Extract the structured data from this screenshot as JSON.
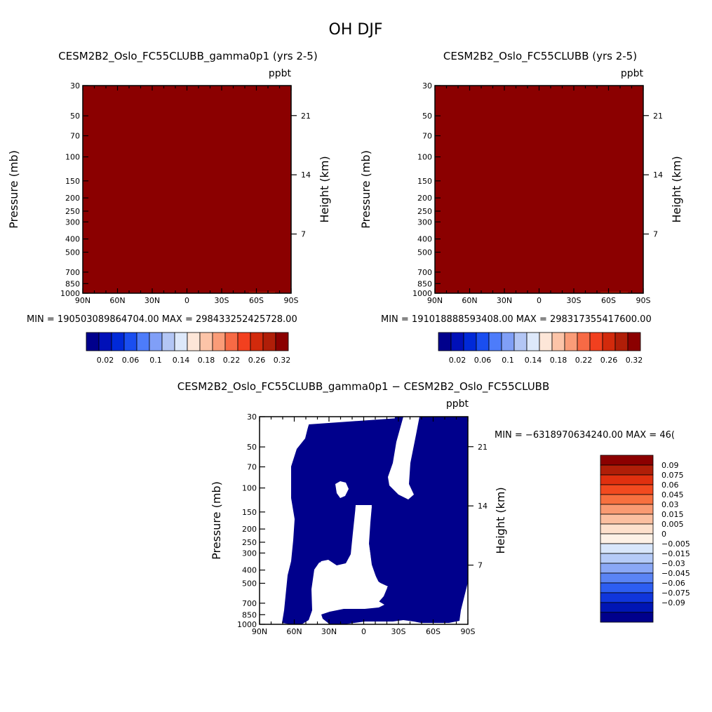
{
  "figure": {
    "title": "OH DJF",
    "colors": {
      "dark_red": "#8b0000",
      "dark_blue": "#00008c",
      "white": "#ffffff"
    }
  },
  "chart_data": [
    {
      "type": "heatmap",
      "id": "top_left",
      "title": "CESM2B2_Oslo_FC55CLUBB_gamma0p1 (yrs 2-5)",
      "units": "ppbt",
      "xlabel": "",
      "ylabel": "Pressure (mb)",
      "right_label": "Height (km)",
      "x_ticks": [
        "90N",
        "60N",
        "30N",
        "0",
        "30S",
        "60S",
        "90S"
      ],
      "y_ticks": [
        "30",
        "50",
        "70",
        "100",
        "150",
        "200",
        "250",
        "300",
        "400",
        "500",
        "700",
        "850",
        "1000"
      ],
      "right_ticks": [
        "21",
        "14",
        "7"
      ],
      "stats": "MIN = 190503089864704.00   MAX = 298433252425728.00",
      "colorbar": {
        "labels": [
          "0.02",
          "0.06",
          "0.1",
          "0.14",
          "0.18",
          "0.22",
          "0.26",
          "0.32"
        ],
        "colors": [
          "#00008c",
          "#0010b8",
          "#0029d8",
          "#1a4ef0",
          "#4d7cfa",
          "#809ff7",
          "#b3c6f5",
          "#dde8fa",
          "#fde6d8",
          "#fcc4a8",
          "#fa9c78",
          "#f76a45",
          "#f2401f",
          "#d22a0c",
          "#b01e08",
          "#8b0000"
        ]
      },
      "field": "uniform above max (dark red)"
    },
    {
      "type": "heatmap",
      "id": "top_right",
      "title": "CESM2B2_Oslo_FC55CLUBB (yrs 2-5)",
      "units": "ppbt",
      "xlabel": "",
      "ylabel": "Pressure (mb)",
      "right_label": "Height (km)",
      "x_ticks": [
        "90N",
        "60N",
        "30N",
        "0",
        "30S",
        "60S",
        "90S"
      ],
      "y_ticks": [
        "30",
        "50",
        "70",
        "100",
        "150",
        "200",
        "250",
        "300",
        "400",
        "500",
        "700",
        "850",
        "1000"
      ],
      "right_ticks": [
        "21",
        "14",
        "7"
      ],
      "stats": "MIN = 191018888593408.00   MAX = 298317355417600.00",
      "colorbar": {
        "labels": [
          "0.02",
          "0.06",
          "0.1",
          "0.14",
          "0.18",
          "0.22",
          "0.26",
          "0.32"
        ],
        "colors": [
          "#00008c",
          "#0010b8",
          "#0029d8",
          "#1a4ef0",
          "#4d7cfa",
          "#809ff7",
          "#b3c6f5",
          "#dde8fa",
          "#fde6d8",
          "#fcc4a8",
          "#fa9c78",
          "#f76a45",
          "#f2401f",
          "#d22a0c",
          "#b01e08",
          "#8b0000"
        ]
      },
      "field": "uniform above max (dark red)"
    },
    {
      "type": "heatmap",
      "id": "difference",
      "title": "CESM2B2_Oslo_FC55CLUBB_gamma0p1 − CESM2B2_Oslo_FC55CLUBB",
      "units": "ppbt",
      "xlabel": "",
      "ylabel": "Pressure (mb)",
      "right_label": "Height (km)",
      "x_ticks": [
        "90N",
        "60N",
        "30N",
        "0",
        "30S",
        "60S",
        "90S"
      ],
      "y_ticks": [
        "30",
        "50",
        "70",
        "100",
        "150",
        "200",
        "250",
        "300",
        "400",
        "500",
        "700",
        "850",
        "1000"
      ],
      "right_ticks": [
        "21",
        "14",
        "7"
      ],
      "stats": "MIN = −6318970634240.00   MAX = 46(",
      "colorbar": {
        "labels": [
          "0.09",
          "0.075",
          "0.06",
          "0.045",
          "0.03",
          "0.015",
          "0.005",
          "0",
          "−0.005",
          "−0.015",
          "−0.03",
          "−0.045",
          "−0.06",
          "−0.075",
          "−0.09"
        ],
        "colors": [
          "#8b0000",
          "#b01e08",
          "#e0300f",
          "#f24a1f",
          "#f7703f",
          "#f99a72",
          "#fbbfa0",
          "#fde0cc",
          "#fdf1e6",
          "#d8e6fb",
          "#b5cbf8",
          "#8aa8f6",
          "#5a84f5",
          "#2d5ef2",
          "#1036dc",
          "#0016b4",
          "#00008c"
        ]
      },
      "field": "mostly below min (dark blue) with white regions"
    }
  ]
}
